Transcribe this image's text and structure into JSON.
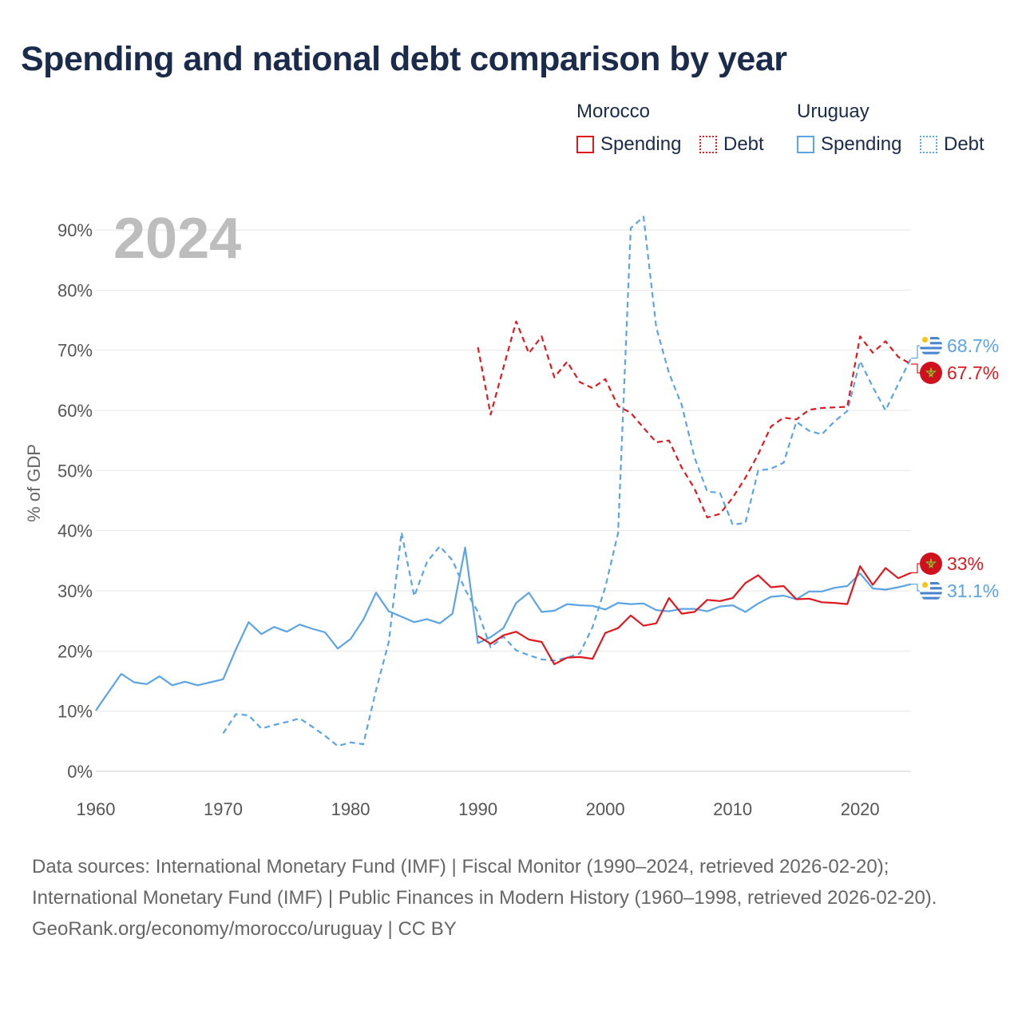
{
  "title": "Spending and national debt comparison by year",
  "legend": {
    "morocco": {
      "name": "Morocco",
      "spending": "Spending",
      "debt": "Debt",
      "color": "#e0191f"
    },
    "uruguay": {
      "name": "Uruguay",
      "spending": "Spending",
      "debt": "Debt",
      "color": "#5ba4e5"
    }
  },
  "year_label": "2024",
  "footer": {
    "sources": "Data sources: International Monetary Fund (IMF) | Fiscal Monitor (1990–2024, retrieved 2026-02-20); International Monetary Fund (IMF) | Public Finances in Modern History (1960–1998, retrieved 2026-02-20).",
    "credit": "GeoRank.org/economy/morocco/uruguay | CC BY"
  },
  "chart_data": {
    "type": "line",
    "title": "Spending and national debt comparison by year",
    "xlabel": "",
    "ylabel": "% of GDP",
    "xlim": [
      1960,
      2024
    ],
    "ylim": [
      0,
      90
    ],
    "xticks": [
      1960,
      1970,
      1980,
      1990,
      2000,
      2010,
      2020
    ],
    "xtick_labels": [
      "1960",
      "1970",
      "1980",
      "1990",
      "2000",
      "2010",
      "2020"
    ],
    "yticks": [
      0,
      10,
      20,
      30,
      40,
      50,
      60,
      70,
      80,
      90
    ],
    "ytick_labels": [
      "0%",
      "10%",
      "20%",
      "30%",
      "40%",
      "50%",
      "60%",
      "70%",
      "80%",
      "90%"
    ],
    "grid": true,
    "series": [
      {
        "name": "Uruguay Spending",
        "country": "Uruguay",
        "measure": "Spending",
        "color": "#5ba4e5",
        "dash": false,
        "end_label": "31.1%",
        "x": [
          1960,
          1961,
          1962,
          1963,
          1964,
          1965,
          1966,
          1967,
          1968,
          1969,
          1970,
          1971,
          1972,
          1973,
          1974,
          1975,
          1976,
          1977,
          1978,
          1979,
          1980,
          1981,
          1982,
          1983,
          1984,
          1985,
          1986,
          1987,
          1988,
          1989,
          1990,
          1991,
          1992,
          1993,
          1994,
          1995,
          1996,
          1997,
          1998,
          1999,
          2000,
          2001,
          2002,
          2003,
          2004,
          2005,
          2006,
          2007,
          2008,
          2009,
          2010,
          2011,
          2012,
          2013,
          2014,
          2015,
          2016,
          2017,
          2018,
          2019,
          2020,
          2021,
          2022,
          2023,
          2024
        ],
        "values": [
          10.1,
          13.2,
          16.2,
          14.8,
          14.5,
          15.8,
          14.3,
          14.9,
          14.3,
          14.8,
          15.3,
          20.3,
          24.8,
          22.8,
          24.0,
          23.2,
          24.4,
          23.7,
          23.1,
          20.4,
          22.0,
          25.2,
          29.7,
          26.6,
          25.7,
          24.8,
          25.3,
          24.6,
          26.2,
          37.2,
          21.3,
          22.3,
          23.8,
          28.0,
          29.7,
          26.5,
          26.7,
          27.8,
          27.6,
          27.5,
          26.9,
          28.0,
          27.8,
          27.9,
          26.8,
          26.6,
          27.0,
          27.0,
          26.6,
          27.4,
          27.6,
          26.5,
          27.9,
          29.0,
          29.2,
          28.6,
          29.9,
          29.9,
          30.5,
          30.8,
          32.9,
          30.4,
          30.2,
          30.6,
          31.1
        ]
      },
      {
        "name": "Uruguay Debt",
        "country": "Uruguay",
        "measure": "Debt",
        "color": "#5ba4e5",
        "dash": true,
        "end_label": "68.7%",
        "x": [
          1970,
          1971,
          1972,
          1973,
          1974,
          1975,
          1976,
          1977,
          1978,
          1979,
          1980,
          1981,
          1982,
          1983,
          1984,
          1985,
          1986,
          1987,
          1988,
          1989,
          1990,
          1991,
          1992,
          1993,
          1994,
          1995,
          1996,
          1997,
          1998,
          1999,
          2000,
          2001,
          2002,
          2003,
          2004,
          2005,
          2006,
          2007,
          2008,
          2009,
          2010,
          2011,
          2012,
          2013,
          2014,
          2015,
          2016,
          2017,
          2018,
          2019,
          2020,
          2021,
          2022,
          2023,
          2024
        ],
        "values": [
          6.3,
          9.5,
          9.3,
          7.1,
          7.7,
          8.2,
          8.8,
          7.4,
          5.9,
          4.2,
          4.8,
          4.5,
          13.5,
          21.5,
          39.7,
          29.1,
          34.8,
          37.4,
          35.1,
          30.2,
          26.5,
          20.6,
          22.4,
          20.1,
          19.3,
          18.6,
          18.4,
          18.9,
          19.6,
          24.0,
          30.6,
          39.6,
          90.3,
          92.2,
          73.8,
          66.2,
          60.9,
          52.2,
          46.5,
          46.3,
          41.0,
          41.3,
          50.0,
          50.3,
          51.3,
          58.1,
          56.6,
          56.0,
          58.2,
          59.9,
          68.2,
          63.9,
          60.0,
          64.4,
          68.7
        ]
      },
      {
        "name": "Morocco Spending",
        "country": "Morocco",
        "measure": "Spending",
        "color": "#e0191f",
        "dash": false,
        "end_label": "33%",
        "x": [
          1990,
          1991,
          1992,
          1993,
          1994,
          1995,
          1996,
          1997,
          1998,
          1999,
          2000,
          2001,
          2002,
          2003,
          2004,
          2005,
          2006,
          2007,
          2008,
          2009,
          2010,
          2011,
          2012,
          2013,
          2014,
          2015,
          2016,
          2017,
          2018,
          2019,
          2020,
          2021,
          2022,
          2023,
          2024
        ],
        "values": [
          22.5,
          21.2,
          22.6,
          23.2,
          21.9,
          21.5,
          17.8,
          18.9,
          19.0,
          18.7,
          23.0,
          23.8,
          25.9,
          24.2,
          24.6,
          28.8,
          26.2,
          26.5,
          28.5,
          28.3,
          28.8,
          31.3,
          32.6,
          30.6,
          30.8,
          28.6,
          28.7,
          28.1,
          28.0,
          27.8,
          34.1,
          31.0,
          33.8,
          32.1,
          33.0
        ]
      },
      {
        "name": "Morocco Debt",
        "country": "Morocco",
        "measure": "Debt",
        "color": "#e0191f",
        "dash": true,
        "end_label": "67.7%",
        "x": [
          1990,
          1991,
          1992,
          1993,
          1994,
          1995,
          1996,
          1997,
          1998,
          1999,
          2000,
          2001,
          2002,
          2003,
          2004,
          2005,
          2006,
          2007,
          2008,
          2009,
          2010,
          2011,
          2012,
          2013,
          2014,
          2015,
          2016,
          2017,
          2018,
          2019,
          2020,
          2021,
          2022,
          2023,
          2024
        ],
        "values": [
          70.5,
          59.3,
          67.1,
          74.8,
          69.5,
          72.3,
          65.5,
          68.1,
          64.7,
          63.7,
          65.2,
          60.7,
          59.6,
          57.1,
          54.7,
          55.0,
          50.5,
          47.0,
          42.2,
          42.8,
          45.5,
          48.8,
          52.7,
          57.3,
          58.8,
          58.5,
          60.1,
          60.4,
          60.5,
          60.6,
          72.3,
          69.6,
          71.5,
          68.9,
          67.7
        ]
      }
    ]
  }
}
